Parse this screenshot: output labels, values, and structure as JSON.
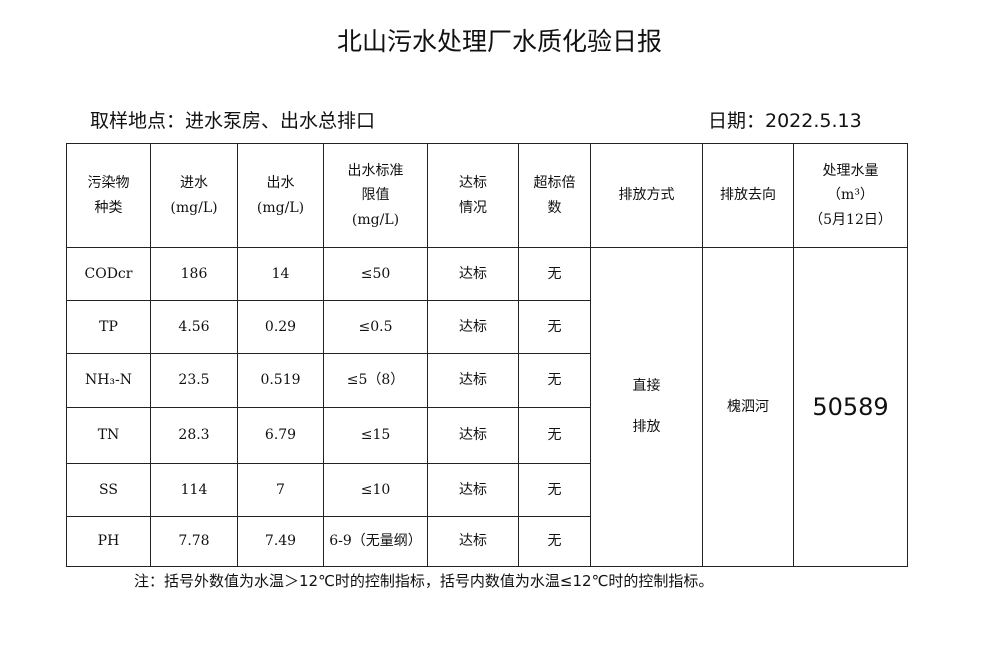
{
  "header": {
    "title": "北山污水处理厂水质化验日报",
    "sample_location": "取样地点：进水泵房、出水总排口",
    "date": "日期：2022.5.13"
  },
  "table": {
    "headers": [
      [
        "污染物",
        "种类"
      ],
      [
        "进水",
        "(mg/L)"
      ],
      [
        "出水",
        "(mg/L)"
      ],
      [
        "出水标准",
        "限值",
        "(mg/L)"
      ],
      [
        "达标",
        "情况"
      ],
      [
        "超标倍",
        "数"
      ],
      [
        "排放方式"
      ],
      [
        "排放去向"
      ],
      [
        "处理水量",
        "（m³）",
        "（5月12日）"
      ]
    ],
    "rows": [
      [
        "CODcr",
        186,
        14,
        "≤50",
        "达标",
        "无"
      ],
      [
        "TP",
        4.56,
        0.29,
        "≤0.5",
        "达标",
        "无"
      ],
      [
        "NH₃-N",
        23.5,
        0.519,
        "≤5（8）",
        "达标",
        "无"
      ],
      [
        "TN",
        28.3,
        6.79,
        "≤15",
        "达标",
        "无"
      ],
      [
        "SS",
        114,
        7,
        "≤10",
        "达标",
        "无"
      ],
      [
        "PH",
        7.78,
        7.49,
        "6-9（无量纲）",
        "达标",
        "无"
      ]
    ],
    "discharge_method": [
      "直接",
      "排放"
    ],
    "destination": "槐泗河",
    "volume": 50589
  },
  "note": "注：括号外数值为水温＞12℃时的控制指标，括号内数值为水温≤12℃时的控制指标。"
}
